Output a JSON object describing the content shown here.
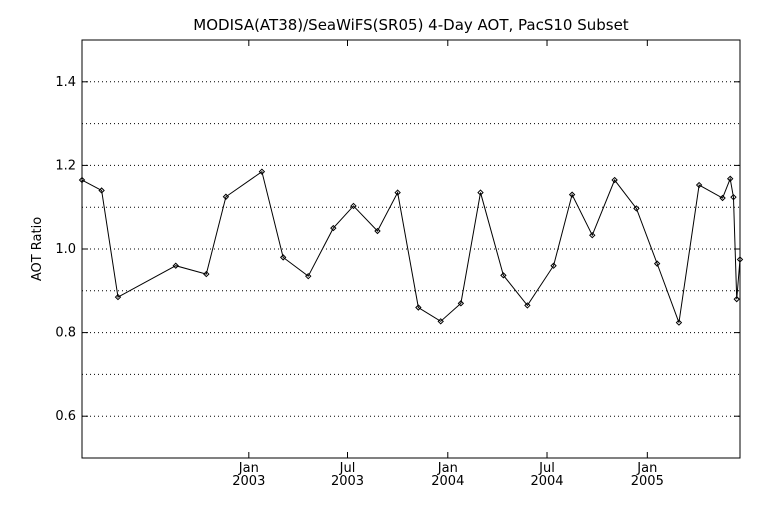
{
  "chart_data": {
    "type": "line",
    "title": "MODISA(AT38)/SeaWiFS(SR05) 4-Day AOT, PacS10 Subset",
    "xlabel": "",
    "ylabel": "AOT Ratio",
    "xlim": [
      "2002-03-01",
      "2005-06-20"
    ],
    "ylim": [
      0.5,
      1.5
    ],
    "grid": {
      "y": true,
      "x": false,
      "style": "dotted"
    },
    "y_ticks": [
      {
        "value": 0.6,
        "label": "0.6"
      },
      {
        "value": 0.8,
        "label": "0.8"
      },
      {
        "value": 1.0,
        "label": "1.0"
      },
      {
        "value": 1.2,
        "label": "1.2"
      },
      {
        "value": 1.4,
        "label": "1.4"
      }
    ],
    "y_gridlines": [
      0.6,
      0.7,
      0.8,
      0.9,
      1.0,
      1.1,
      1.2,
      1.3,
      1.4
    ],
    "x_ticks": [
      {
        "date": "2003-01-01",
        "month": "Jan",
        "year": "2003"
      },
      {
        "date": "2003-07-01",
        "month": "Jul",
        "year": "2003"
      },
      {
        "date": "2004-01-01",
        "month": "Jan",
        "year": "2004"
      },
      {
        "date": "2004-07-01",
        "month": "Jul",
        "year": "2004"
      },
      {
        "date": "2005-01-01",
        "month": "Jan",
        "year": "2005"
      }
    ],
    "series": [
      {
        "marker": "diamond",
        "color": "#000000",
        "points": [
          {
            "x": "2002-03-01",
            "y": 1.165
          },
          {
            "x": "2002-04-06",
            "y": 1.14
          },
          {
            "x": "2002-05-06",
            "y": 0.885
          },
          {
            "x": "2002-08-20",
            "y": 0.96
          },
          {
            "x": "2002-10-15",
            "y": 0.94
          },
          {
            "x": "2002-11-20",
            "y": 1.125
          },
          {
            "x": "2003-01-25",
            "y": 1.185
          },
          {
            "x": "2003-03-05",
            "y": 0.98
          },
          {
            "x": "2003-04-20",
            "y": 0.935
          },
          {
            "x": "2003-06-05",
            "y": 1.05
          },
          {
            "x": "2003-07-12",
            "y": 1.103
          },
          {
            "x": "2003-08-25",
            "y": 1.043
          },
          {
            "x": "2003-10-01",
            "y": 1.135
          },
          {
            "x": "2003-11-08",
            "y": 0.86
          },
          {
            "x": "2003-12-19",
            "y": 0.827
          },
          {
            "x": "2004-01-25",
            "y": 0.87
          },
          {
            "x": "2004-03-01",
            "y": 1.135
          },
          {
            "x": "2004-04-12",
            "y": 0.937
          },
          {
            "x": "2004-05-26",
            "y": 0.865
          },
          {
            "x": "2004-07-13",
            "y": 0.96
          },
          {
            "x": "2004-08-16",
            "y": 1.13
          },
          {
            "x": "2004-09-22",
            "y": 1.033
          },
          {
            "x": "2004-11-02",
            "y": 1.165
          },
          {
            "x": "2004-12-12",
            "y": 1.097
          },
          {
            "x": "2005-01-19",
            "y": 0.965
          },
          {
            "x": "2005-02-28",
            "y": 0.824
          },
          {
            "x": "2005-04-06",
            "y": 1.153
          },
          {
            "x": "2005-05-19",
            "y": 1.122
          },
          {
            "x": "2005-06-02",
            "y": 1.168
          },
          {
            "x": "2005-06-08",
            "y": 1.124
          },
          {
            "x": "2005-06-14",
            "y": 0.88
          },
          {
            "x": "2005-06-20",
            "y": 0.975
          }
        ]
      }
    ]
  }
}
